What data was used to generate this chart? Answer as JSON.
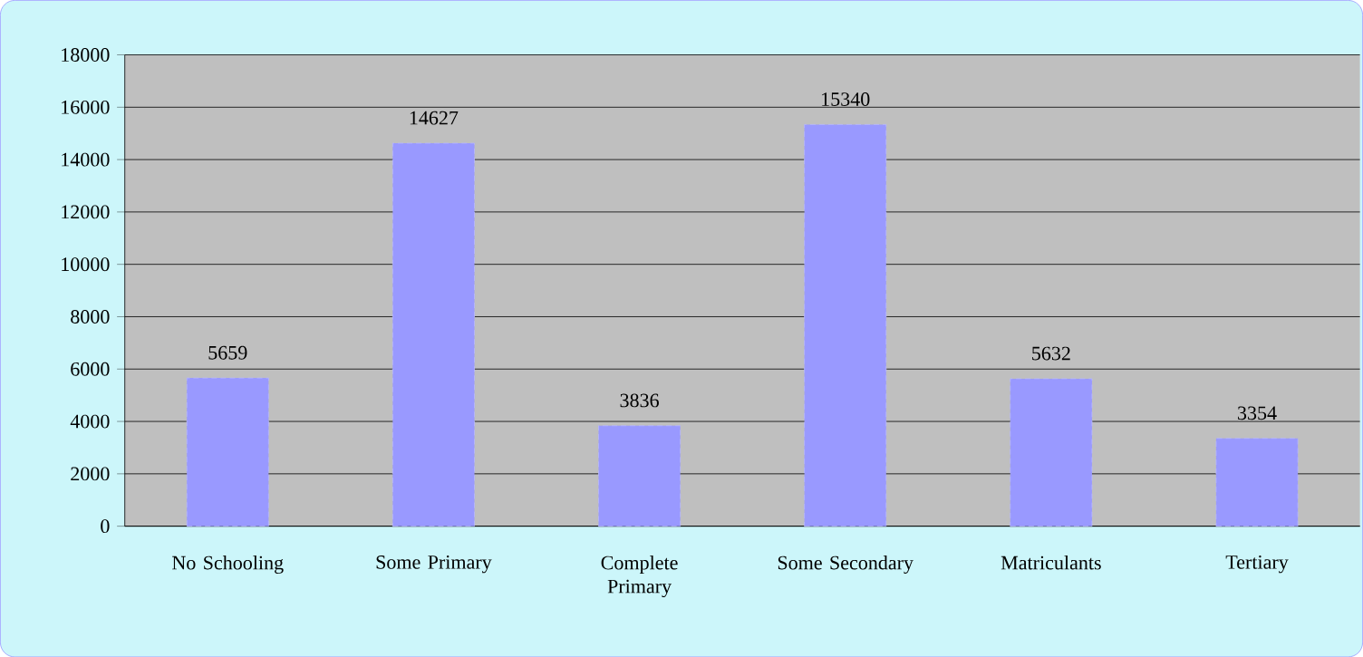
{
  "chart_data": {
    "type": "bar",
    "categories": [
      "No Schooling",
      "Some Primary",
      "Complete Primary",
      "Some Secondary",
      "Matriculants",
      "Tertiary"
    ],
    "values": [
      5659,
      14627,
      3836,
      15340,
      5632,
      3354
    ],
    "color": "#9999ff",
    "ylim": [
      0,
      18000
    ],
    "yticks": [
      0,
      2000,
      4000,
      6000,
      8000,
      10000,
      12000,
      14000,
      16000,
      18000
    ],
    "grid": "y",
    "data_labels": true
  }
}
